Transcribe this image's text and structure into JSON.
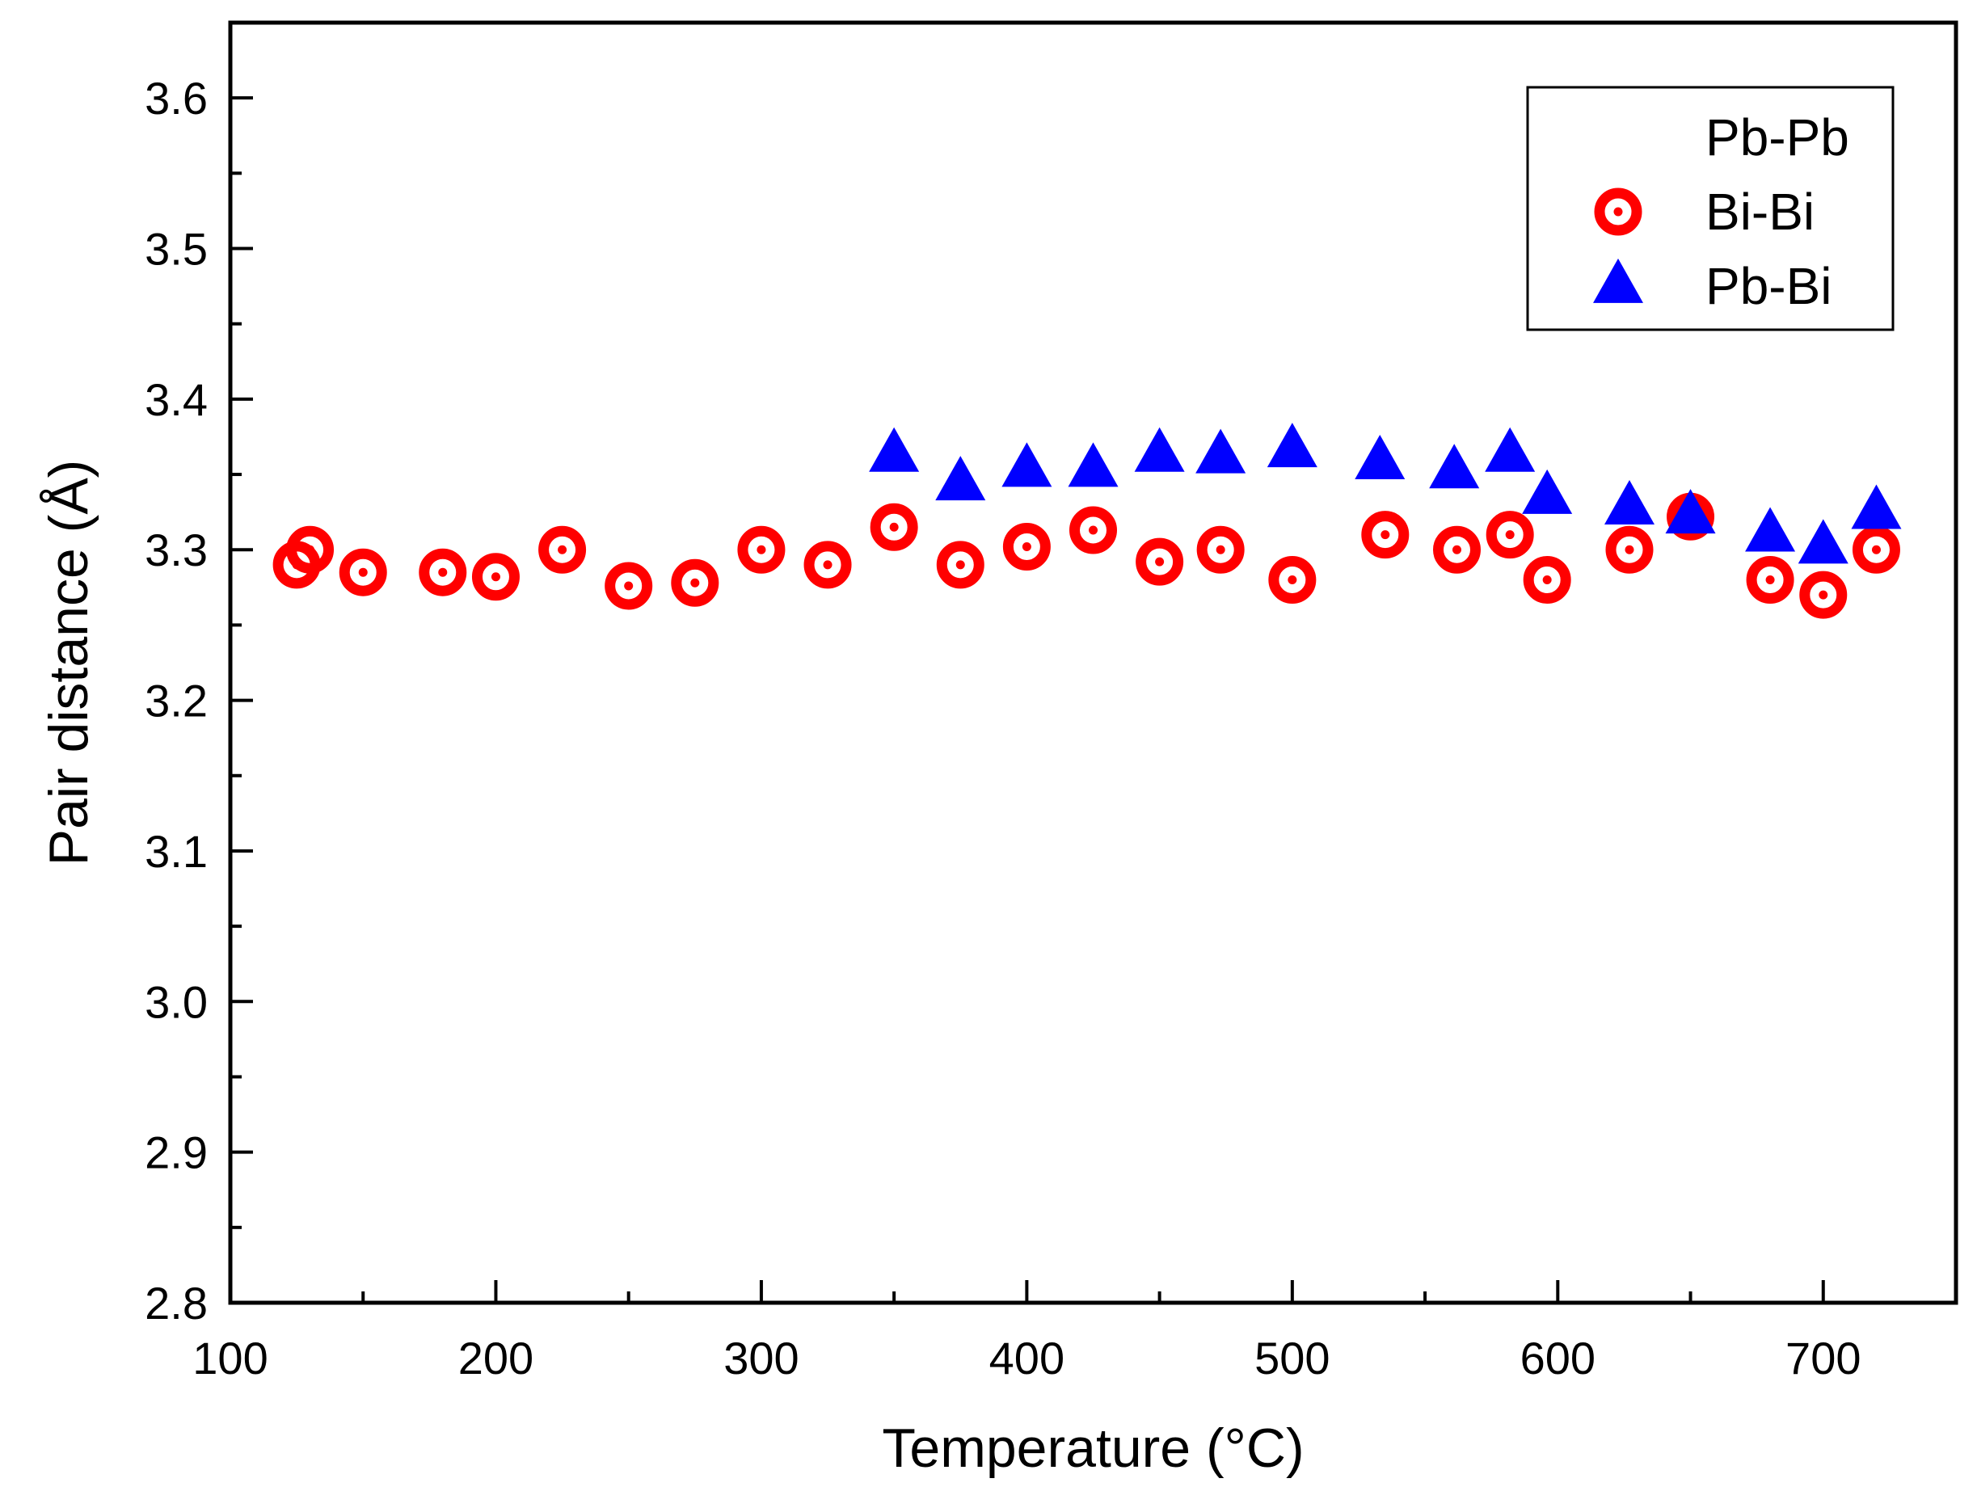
{
  "chart_data": {
    "type": "scatter",
    "title": "",
    "xlabel": "Temperature (°C)",
    "ylabel": "Pair distance (Å)",
    "xlim": [
      100,
      750
    ],
    "ylim": [
      2.8,
      3.65
    ],
    "x_ticks": [
      100,
      200,
      300,
      400,
      500,
      600,
      700
    ],
    "x_tick_labels": [
      "100",
      "200",
      "300",
      "400",
      "500",
      "600",
      "700"
    ],
    "y_ticks": [
      2.8,
      2.9,
      3.0,
      3.1,
      3.2,
      3.3,
      3.4,
      3.5,
      3.6
    ],
    "y_tick_labels": [
      "2.8",
      "2.9",
      "3.0",
      "3.1",
      "3.2",
      "3.3",
      "3.4",
      "3.5",
      "3.6"
    ],
    "grid": false,
    "legend_position": "top-right",
    "series": [
      {
        "name": "Pb-Pb",
        "marker": "none",
        "color": "#000000",
        "points": []
      },
      {
        "name": "Bi-Bi",
        "marker": "ring",
        "color": "#ff0000",
        "points": [
          {
            "x": 125,
            "y": 3.29
          },
          {
            "x": 130,
            "y": 3.3
          },
          {
            "x": 150,
            "y": 3.285
          },
          {
            "x": 180,
            "y": 3.285
          },
          {
            "x": 200,
            "y": 3.282
          },
          {
            "x": 225,
            "y": 3.3
          },
          {
            "x": 250,
            "y": 3.276
          },
          {
            "x": 275,
            "y": 3.278
          },
          {
            "x": 300,
            "y": 3.3
          },
          {
            "x": 325,
            "y": 3.29
          },
          {
            "x": 350,
            "y": 3.315
          },
          {
            "x": 375,
            "y": 3.29
          },
          {
            "x": 400,
            "y": 3.302
          },
          {
            "x": 425,
            "y": 3.313
          },
          {
            "x": 450,
            "y": 3.292
          },
          {
            "x": 473,
            "y": 3.3
          },
          {
            "x": 500,
            "y": 3.28
          },
          {
            "x": 535,
            "y": 3.31
          },
          {
            "x": 562,
            "y": 3.3
          },
          {
            "x": 582,
            "y": 3.31
          },
          {
            "x": 596,
            "y": 3.28
          },
          {
            "x": 627,
            "y": 3.3
          },
          {
            "x": 650,
            "y": 3.322
          },
          {
            "x": 680,
            "y": 3.28
          },
          {
            "x": 700,
            "y": 3.27
          },
          {
            "x": 720,
            "y": 3.3
          }
        ]
      },
      {
        "name": "Pb-Bi",
        "marker": "triangle",
        "color": "#0000ff",
        "points": [
          {
            "x": 350,
            "y": 3.363
          },
          {
            "x": 375,
            "y": 3.344
          },
          {
            "x": 400,
            "y": 3.353
          },
          {
            "x": 425,
            "y": 3.353
          },
          {
            "x": 450,
            "y": 3.363
          },
          {
            "x": 473,
            "y": 3.362
          },
          {
            "x": 500,
            "y": 3.366
          },
          {
            "x": 533,
            "y": 3.358
          },
          {
            "x": 561,
            "y": 3.352
          },
          {
            "x": 582,
            "y": 3.363
          },
          {
            "x": 596,
            "y": 3.335
          },
          {
            "x": 627,
            "y": 3.328
          },
          {
            "x": 650,
            "y": 3.322
          },
          {
            "x": 680,
            "y": 3.31
          },
          {
            "x": 700,
            "y": 3.302
          },
          {
            "x": 720,
            "y": 3.325
          }
        ]
      }
    ]
  }
}
